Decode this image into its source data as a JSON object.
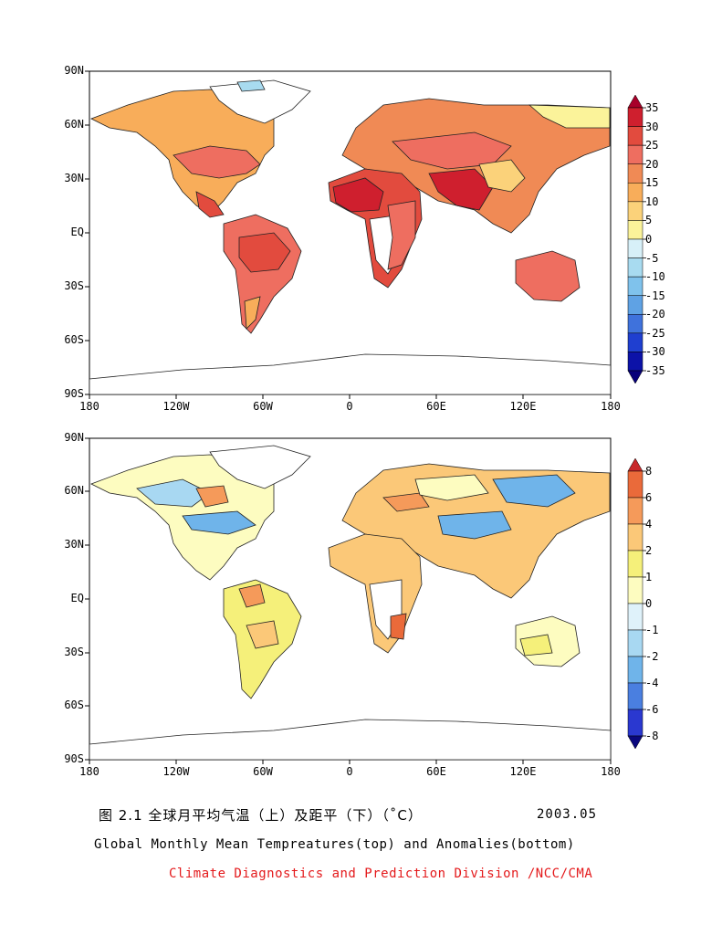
{
  "panels": [
    {
      "name": "temperature",
      "lat_ticks": [
        "90N",
        "60N",
        "30N",
        "EQ",
        "30S",
        "60S",
        "90S"
      ],
      "lon_ticks": [
        "180",
        "120W",
        "60W",
        "0",
        "60E",
        "120E",
        "180"
      ],
      "colorbar": {
        "labels": [
          "35",
          "30",
          "25",
          "20",
          "15",
          "10",
          "5",
          "0",
          "-5",
          "-10",
          "-15",
          "-20",
          "-25",
          "-30",
          "-35"
        ],
        "colors": [
          "#a8002a",
          "#cf1f2e",
          "#e24b3e",
          "#ee6e60",
          "#f08a55",
          "#f8ad5a",
          "#fbd27a",
          "#fbf39a",
          "#d7f0f8",
          "#a8dbf0",
          "#7fc2ec",
          "#5fa2e4",
          "#3f72dc",
          "#1f3fd0",
          "#0c12a8",
          "#07007a"
        ]
      }
    },
    {
      "name": "anomaly",
      "lat_ticks": [
        "90N",
        "60N",
        "30N",
        "EQ",
        "30S",
        "60S",
        "90S"
      ],
      "lon_ticks": [
        "180",
        "120W",
        "60W",
        "0",
        "60E",
        "120E",
        "180"
      ],
      "colorbar": {
        "labels": [
          "8",
          "6",
          "4",
          "2",
          "1",
          "0",
          "-1",
          "-2",
          "-4",
          "-6",
          "-8"
        ],
        "colors": [
          "#c8282a",
          "#ea6a3a",
          "#f59a5a",
          "#fbc878",
          "#f5f07a",
          "#fdfcc0",
          "#dff2fa",
          "#a8d8f2",
          "#6fb4ea",
          "#4a7fe0",
          "#2a38d0",
          "#0a087e"
        ]
      }
    }
  ],
  "caption": {
    "chinese": "图 2.1  全球月平均气温（上）及距平（下）（˚C）",
    "date": "2003.05",
    "english": "Global Monthly Mean Tempreatures(top) and Anomalies(bottom)",
    "credit": "Climate Diagnostics and Prediction Division /NCC/CMA",
    "credit_color": "#e41a1c"
  }
}
